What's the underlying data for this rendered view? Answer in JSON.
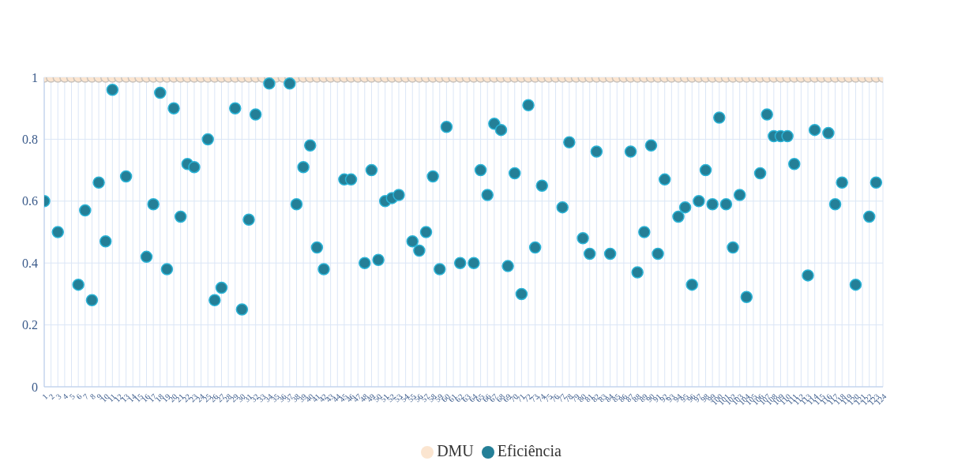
{
  "chart_data": {
    "type": "scatter",
    "categories": [
      "1",
      "2",
      "3",
      "4",
      "5",
      "6",
      "7",
      "8",
      "9",
      "10",
      "11",
      "12",
      "13",
      "14",
      "15",
      "16",
      "17",
      "18",
      "19",
      "20",
      "21",
      "22",
      "23",
      "24",
      "25",
      "26",
      "27",
      "28",
      "29",
      "30",
      "31",
      "32",
      "33",
      "34",
      "35",
      "36",
      "37",
      "38",
      "39",
      "40",
      "41",
      "42",
      "43",
      "44",
      "45",
      "46",
      "47",
      "48",
      "49",
      "50",
      "51",
      "52",
      "53",
      "54",
      "55",
      "56",
      "57",
      "58",
      "59",
      "60",
      "61",
      "62",
      "63",
      "64",
      "65",
      "66",
      "67",
      "68",
      "69",
      "70",
      "71",
      "72",
      "73",
      "74",
      "75",
      "76",
      "77",
      "78",
      "79",
      "80",
      "81",
      "82",
      "83",
      "84",
      "85",
      "86",
      "87",
      "88",
      "89",
      "90",
      "91",
      "92",
      "93",
      "94",
      "95",
      "96",
      "97",
      "98",
      "99",
      "100",
      "101",
      "102",
      "103",
      "104",
      "105",
      "106",
      "107",
      "108",
      "109",
      "110",
      "111",
      "112",
      "113",
      "114",
      "115",
      "116",
      "117",
      "118",
      "119",
      "120",
      "121",
      "122",
      "123",
      "124"
    ],
    "series": [
      {
        "name": "DMU",
        "color": "#fbe5d0",
        "values": [
          1,
          1,
          1,
          1,
          1,
          1,
          1,
          1,
          1,
          1,
          1,
          1,
          1,
          1,
          1,
          1,
          1,
          1,
          1,
          1,
          1,
          1,
          1,
          1,
          1,
          1,
          1,
          1,
          1,
          1,
          1,
          1,
          1,
          1,
          1,
          1,
          1,
          1,
          1,
          1,
          1,
          1,
          1,
          1,
          1,
          1,
          1,
          1,
          1,
          1,
          1,
          1,
          1,
          1,
          1,
          1,
          1,
          1,
          1,
          1,
          1,
          1,
          1,
          1,
          1,
          1,
          1,
          1,
          1,
          1,
          1,
          1,
          1,
          1,
          1,
          1,
          1,
          1,
          1,
          1,
          1,
          1,
          1,
          1,
          1,
          1,
          1,
          1,
          1,
          1,
          1,
          1,
          1,
          1,
          1,
          1,
          1,
          1,
          1,
          1,
          1,
          1,
          1,
          1,
          1,
          1,
          1,
          1,
          1,
          1,
          1,
          1,
          1,
          1,
          1,
          1,
          1,
          1,
          1,
          1,
          1,
          1,
          1,
          1
        ]
      },
      {
        "name": "Eficiência",
        "color": "#247f97",
        "values": [
          0.6,
          null,
          0.5,
          null,
          null,
          0.33,
          0.57,
          0.28,
          0.66,
          0.47,
          0.96,
          null,
          0.68,
          null,
          null,
          0.42,
          0.59,
          0.95,
          0.38,
          0.9,
          0.55,
          0.72,
          0.71,
          null,
          0.8,
          0.28,
          0.32,
          null,
          0.9,
          0.25,
          0.54,
          0.88,
          null,
          0.98,
          null,
          null,
          0.98,
          0.59,
          0.71,
          0.78,
          0.45,
          0.38,
          null,
          null,
          0.67,
          0.67,
          null,
          0.4,
          0.7,
          0.41,
          0.6,
          0.61,
          0.62,
          null,
          0.47,
          0.44,
          0.5,
          0.68,
          0.38,
          0.84,
          null,
          0.4,
          null,
          0.4,
          0.7,
          0.62,
          0.85,
          0.83,
          0.39,
          0.69,
          0.3,
          0.91,
          0.45,
          0.65,
          null,
          null,
          0.58,
          0.79,
          null,
          0.48,
          0.43,
          0.76,
          null,
          0.43,
          null,
          null,
          0.76,
          0.37,
          0.5,
          0.78,
          0.43,
          0.67,
          null,
          0.55,
          0.58,
          0.33,
          0.6,
          0.7,
          0.59,
          0.87,
          0.59,
          0.45,
          0.62,
          0.29,
          null,
          0.69,
          0.88,
          0.81,
          0.81,
          0.81,
          0.72,
          null,
          0.36,
          0.83,
          null,
          0.82,
          0.59,
          0.66,
          null,
          0.33,
          null,
          0.55,
          0.66,
          null
        ]
      }
    ],
    "ylim": [
      0,
      1
    ],
    "yticks": [
      0,
      {
        "value": 0.2,
        "label": "0.2"
      },
      {
        "value": 0.4,
        "label": "0.4"
      },
      {
        "value": 0.6,
        "label": "0.6"
      },
      {
        "value": 0.8,
        "label": "0.8"
      },
      1
    ],
    "grid": true,
    "legend": "bottom",
    "marker": "circle"
  }
}
